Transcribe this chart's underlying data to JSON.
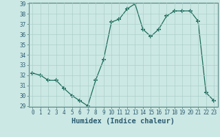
{
  "x": [
    0,
    1,
    2,
    3,
    4,
    5,
    6,
    7,
    8,
    9,
    10,
    11,
    12,
    13,
    14,
    15,
    16,
    17,
    18,
    19,
    20,
    21,
    22,
    23
  ],
  "y": [
    32.2,
    32.0,
    31.5,
    31.5,
    30.7,
    30.0,
    29.5,
    29.0,
    31.5,
    33.5,
    37.2,
    37.5,
    38.5,
    39.0,
    36.5,
    35.8,
    36.5,
    37.8,
    38.3,
    38.3,
    38.3,
    37.3,
    30.3,
    29.5
  ],
  "line_color": "#1a6b5a",
  "marker": "+",
  "marker_size": 4,
  "bg_color": "#cce8e4",
  "grid_color": "#aacfcb",
  "xlabel": "Humidex (Indice chaleur)",
  "ylim": [
    29,
    39
  ],
  "xlim": [
    -0.5,
    23.5
  ],
  "yticks": [
    29,
    30,
    31,
    32,
    33,
    34,
    35,
    36,
    37,
    38,
    39
  ],
  "xticks": [
    0,
    1,
    2,
    3,
    4,
    5,
    6,
    7,
    8,
    9,
    10,
    11,
    12,
    13,
    14,
    15,
    16,
    17,
    18,
    19,
    20,
    21,
    22,
    23
  ],
  "tick_label_fontsize": 5.5,
  "xlabel_fontsize": 7.5,
  "ylabel_fontsize": 6,
  "axis_color": "#2a5a70",
  "spine_color": "#5a8a88"
}
